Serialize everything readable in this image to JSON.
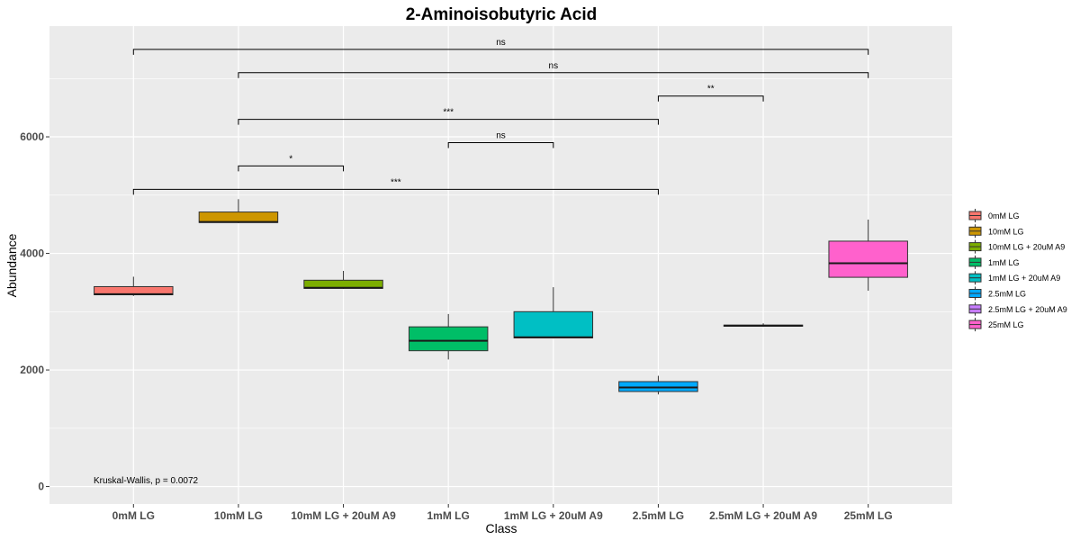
{
  "chart_data": {
    "type": "box",
    "title": "2-Aminoisobutyric Acid",
    "xlabel": "Class",
    "ylabel": "Abundance",
    "ylim": [
      -300,
      7900
    ],
    "yticks": [
      0,
      2000,
      4000,
      6000
    ],
    "categories": [
      "0mM LG",
      "10mM LG",
      "10mM LG + 20uM A9",
      "1mM LG",
      "1mM LG + 20uM A9",
      "2.5mM LG",
      "2.5mM LG + 20uM A9",
      "25mM LG"
    ],
    "colors": [
      "#F8766D",
      "#CD9600",
      "#7CAE00",
      "#00BE67",
      "#00BFC4",
      "#00A9FF",
      "#C77CFF",
      "#FF61CC"
    ],
    "boxes": [
      {
        "name": "0mM LG",
        "min": 3270,
        "q1": 3290,
        "median": 3300,
        "q3": 3430,
        "max": 3600
      },
      {
        "name": "10mM LG",
        "min": 4520,
        "q1": 4530,
        "median": 4540,
        "q3": 4710,
        "max": 4930
      },
      {
        "name": "10mM LG + 20uM A9",
        "min": 3390,
        "q1": 3400,
        "median": 3410,
        "q3": 3540,
        "max": 3700
      },
      {
        "name": "1mM LG",
        "min": 2180,
        "q1": 2330,
        "median": 2500,
        "q3": 2740,
        "max": 2960
      },
      {
        "name": "1mM LG + 20uM A9",
        "min": 2540,
        "q1": 2550,
        "median": 2560,
        "q3": 3000,
        "max": 3420
      },
      {
        "name": "2.5mM LG",
        "min": 1580,
        "q1": 1630,
        "median": 1700,
        "q3": 1800,
        "max": 1900
      },
      {
        "name": "2.5mM LG + 20uM A9",
        "min": 2740,
        "q1": 2750,
        "median": 2760,
        "q3": 2770,
        "max": 2800
      },
      {
        "name": "25mM LG",
        "min": 3360,
        "q1": 3590,
        "median": 3830,
        "q3": 4210,
        "max": 4580
      }
    ],
    "comparisons": [
      {
        "from": 0,
        "to": 7,
        "y": 7500,
        "label": "ns"
      },
      {
        "from": 1,
        "to": 7,
        "y": 7100,
        "label": "ns"
      },
      {
        "from": 5,
        "to": 6,
        "y": 6700,
        "label": "**"
      },
      {
        "from": 1,
        "to": 5,
        "y": 6300,
        "label": "***"
      },
      {
        "from": 3,
        "to": 4,
        "y": 5900,
        "label": "ns"
      },
      {
        "from": 1,
        "to": 2,
        "y": 5500,
        "label": "*"
      },
      {
        "from": 0,
        "to": 5,
        "y": 5100,
        "label": "***"
      }
    ],
    "annotation": "Kruskal-Wallis, p = 0.0072",
    "grid": true,
    "legend_position": "right"
  }
}
